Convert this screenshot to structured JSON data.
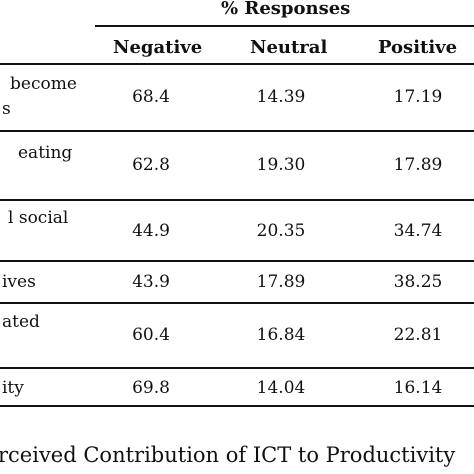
{
  "table": {
    "group_header": "% Responses",
    "columns": [
      "Negative",
      "Neutral",
      "Positive"
    ],
    "rows": [
      {
        "label_lines": [
          "become",
          "s"
        ],
        "values": [
          "68.4",
          "14.39",
          "17.19"
        ]
      },
      {
        "label_lines": [
          "eating",
          ""
        ],
        "values": [
          "62.8",
          "19.30",
          "17.89"
        ]
      },
      {
        "label_lines": [
          "l social",
          ""
        ],
        "values": [
          "44.9",
          "20.35",
          "34.74"
        ]
      },
      {
        "label_lines": [
          "ives"
        ],
        "values": [
          "43.9",
          "17.89",
          "38.25"
        ]
      },
      {
        "label_lines": [
          "ated",
          ""
        ],
        "values": [
          "60.4",
          "16.84",
          "22.81"
        ]
      },
      {
        "label_lines": [
          "ity"
        ],
        "values": [
          "69.8",
          "14.04",
          "16.14"
        ]
      }
    ]
  },
  "caption": "rceived Contribution of ICT to Productivity"
}
